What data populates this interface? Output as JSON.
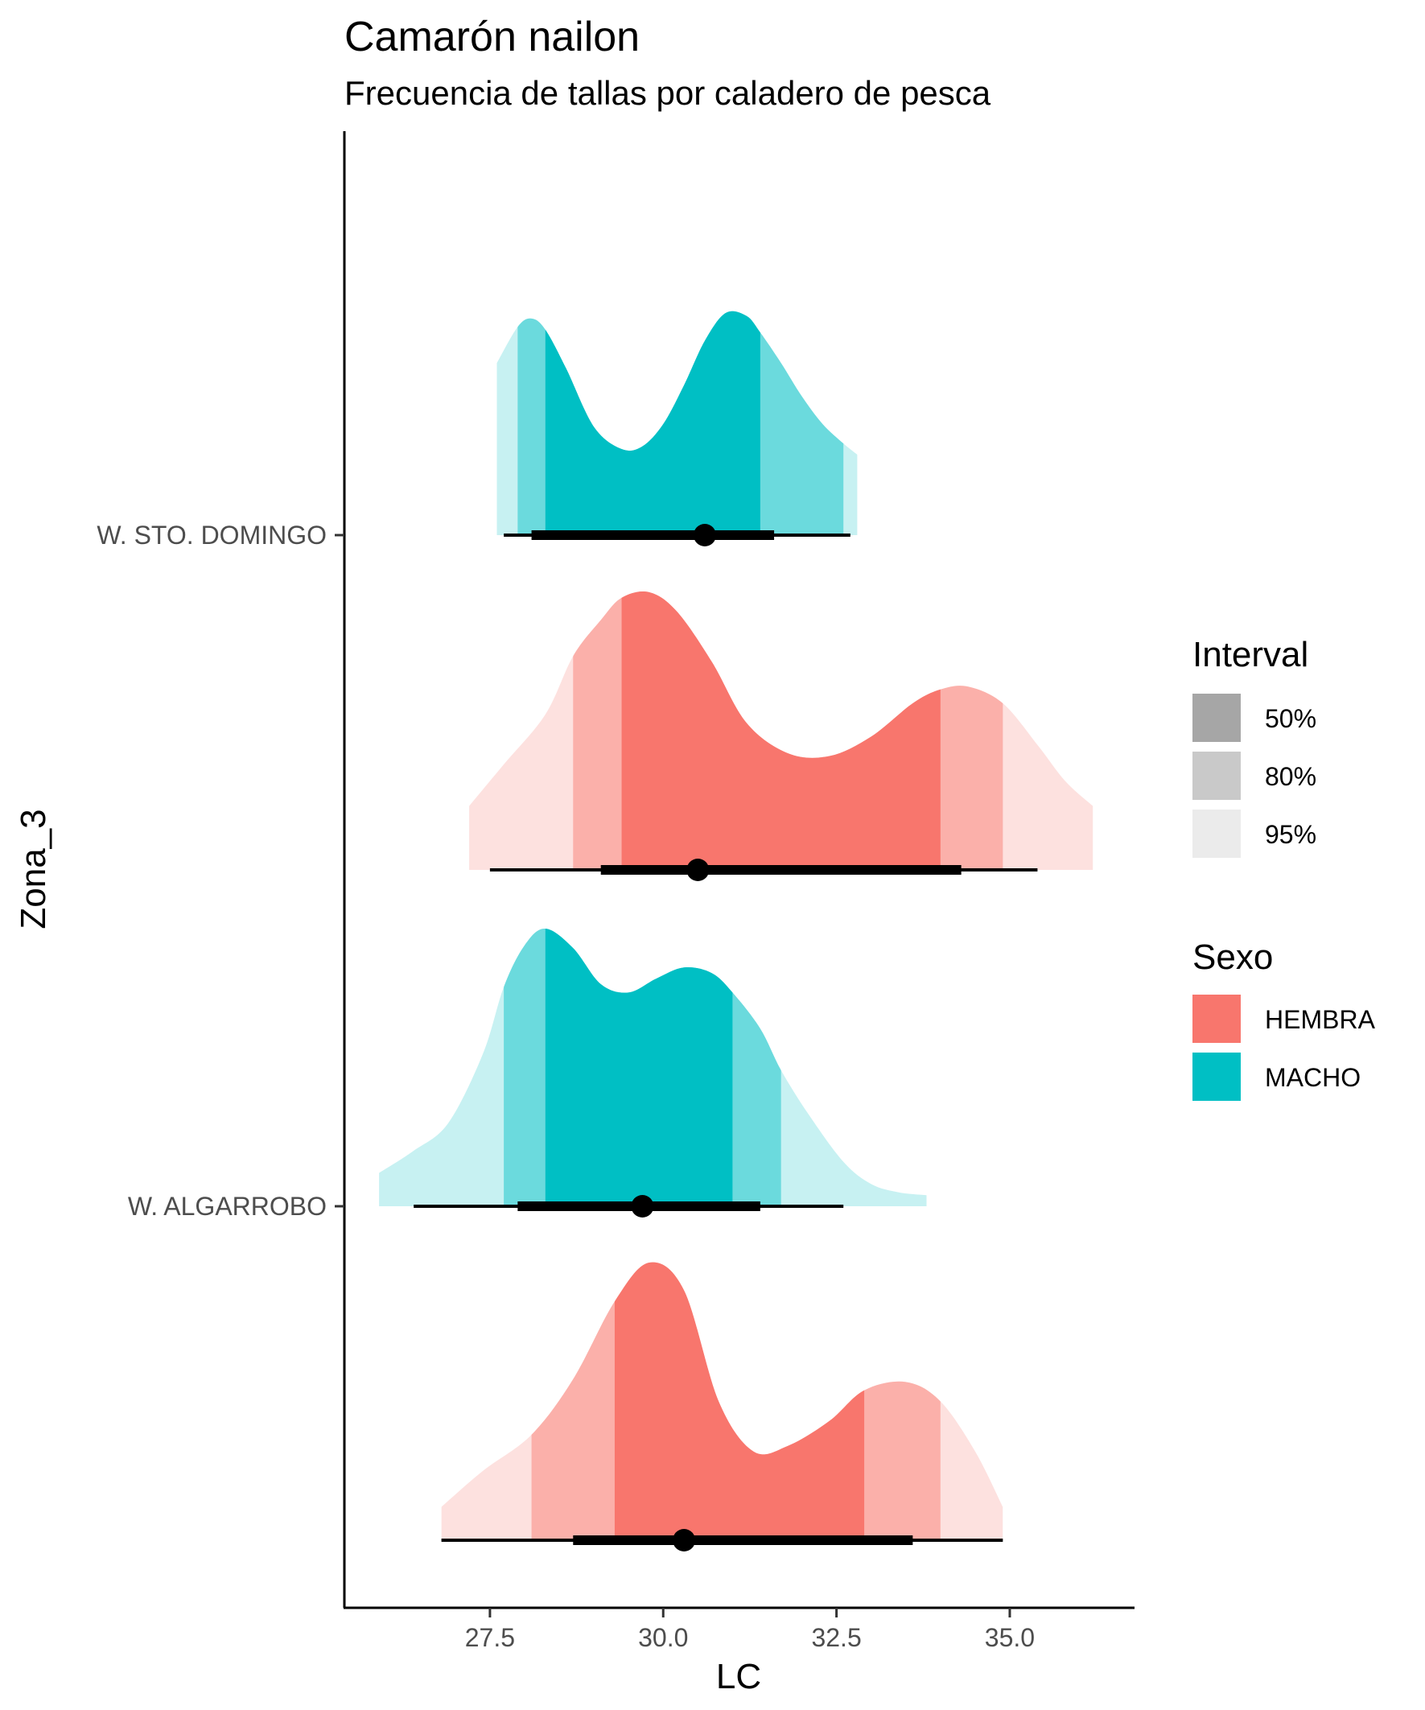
{
  "chart_data": {
    "type": "halfeye",
    "title": "Camarón nailon",
    "subtitle": "Frecuencia de tallas por caladero de pesca",
    "xlabel": "LC",
    "ylabel": "Zona_3",
    "xlim": [
      25.4,
      36.8
    ],
    "xticks": [
      27.5,
      30.0,
      32.5,
      35.0
    ],
    "xtick_labels": [
      "27.5",
      "30.0",
      "32.5",
      "35.0"
    ],
    "categories": [
      "W. ALGARROBO",
      "W. STO. DOMINGO"
    ],
    "colors": {
      "HEMBRA": "#F8766D",
      "MACHO": "#00BFC4"
    },
    "series": [
      {
        "zona": "W. ALGARROBO",
        "sexo": "HEMBRA",
        "level": 1,
        "median": 30.3,
        "interval_50": [
          29.3,
          32.9
        ],
        "interval_80": [
          28.1,
          34.0
        ],
        "interval_95": [
          26.8,
          34.9
        ],
        "line_interval_66": [
          28.7,
          33.6
        ],
        "line_interval_95": [
          26.8,
          34.9
        ],
        "density": {
          "x": [
            26.8,
            27.4,
            28.1,
            28.7,
            29.3,
            29.8,
            30.3,
            30.8,
            31.3,
            31.8,
            32.4,
            32.9,
            33.5,
            34.0,
            34.5,
            34.9
          ],
          "y": [
            0.12,
            0.25,
            0.38,
            0.58,
            0.86,
            1.0,
            0.9,
            0.5,
            0.32,
            0.34,
            0.43,
            0.54,
            0.57,
            0.5,
            0.32,
            0.12
          ]
        }
      },
      {
        "zona": "W. ALGARROBO",
        "sexo": "MACHO",
        "level": 2,
        "median": 29.7,
        "interval_50": [
          28.3,
          31.0
        ],
        "interval_80": [
          27.7,
          31.7
        ],
        "interval_95": [
          25.9,
          33.8
        ],
        "line_interval_66": [
          27.9,
          31.4
        ],
        "line_interval_95": [
          26.4,
          32.6
        ],
        "density": {
          "x": [
            25.9,
            26.4,
            26.9,
            27.4,
            27.7,
            28.0,
            28.3,
            28.7,
            29.1,
            29.5,
            29.9,
            30.3,
            30.7,
            31.0,
            31.4,
            31.7,
            32.1,
            32.6,
            33.0,
            33.4,
            33.8
          ],
          "y": [
            0.12,
            0.2,
            0.3,
            0.55,
            0.79,
            0.94,
            1.0,
            0.93,
            0.8,
            0.77,
            0.82,
            0.86,
            0.84,
            0.77,
            0.64,
            0.49,
            0.33,
            0.16,
            0.08,
            0.05,
            0.04
          ]
        }
      },
      {
        "zona": "W. STO. DOMINGO",
        "sexo": "HEMBRA",
        "level": 3,
        "median": 30.5,
        "interval_50": [
          29.4,
          34.0
        ],
        "interval_80": [
          28.7,
          34.9
        ],
        "interval_95": [
          27.2,
          36.2
        ],
        "line_interval_66": [
          29.1,
          34.3
        ],
        "line_interval_95": [
          27.5,
          35.4
        ],
        "density": {
          "x": [
            27.2,
            27.7,
            28.3,
            28.7,
            29.1,
            29.4,
            29.8,
            30.2,
            30.7,
            31.2,
            31.8,
            32.4,
            33.0,
            33.6,
            34.0,
            34.4,
            34.9,
            35.4,
            35.8,
            36.2
          ],
          "y": [
            0.23,
            0.38,
            0.56,
            0.77,
            0.9,
            0.98,
            1.0,
            0.93,
            0.75,
            0.53,
            0.42,
            0.41,
            0.48,
            0.6,
            0.65,
            0.66,
            0.6,
            0.45,
            0.32,
            0.23
          ]
        }
      },
      {
        "zona": "W. STO. DOMINGO",
        "sexo": "MACHO",
        "level": 4,
        "median": 30.6,
        "interval_50": [
          28.3,
          31.4
        ],
        "interval_80": [
          27.9,
          32.6
        ],
        "interval_95": [
          27.6,
          32.8
        ],
        "line_interval_66": [
          28.1,
          31.6
        ],
        "line_interval_95": [
          27.7,
          32.7
        ],
        "density": {
          "x": [
            27.6,
            27.9,
            28.1,
            28.3,
            28.6,
            29.0,
            29.4,
            29.7,
            30.0,
            30.3,
            30.6,
            30.9,
            31.2,
            31.4,
            31.7,
            32.0,
            32.3,
            32.6,
            32.8
          ],
          "y": [
            0.62,
            0.75,
            0.78,
            0.74,
            0.6,
            0.39,
            0.31,
            0.32,
            0.4,
            0.54,
            0.7,
            0.8,
            0.79,
            0.73,
            0.62,
            0.5,
            0.4,
            0.33,
            0.29
          ]
        }
      }
    ],
    "legend": {
      "position": "right",
      "interval_title": "Interval",
      "interval_items": [
        {
          "label": "50%",
          "color": "#A6A6A6"
        },
        {
          "label": "80%",
          "color": "#C9C9C9"
        },
        {
          "label": "95%",
          "color": "#EBEBEB"
        }
      ],
      "fill_title": "Sexo",
      "fill_items": [
        {
          "label": "HEMBRA",
          "color": "#F8766D"
        },
        {
          "label": "MACHO",
          "color": "#00BFC4"
        }
      ]
    },
    "grid": false
  }
}
